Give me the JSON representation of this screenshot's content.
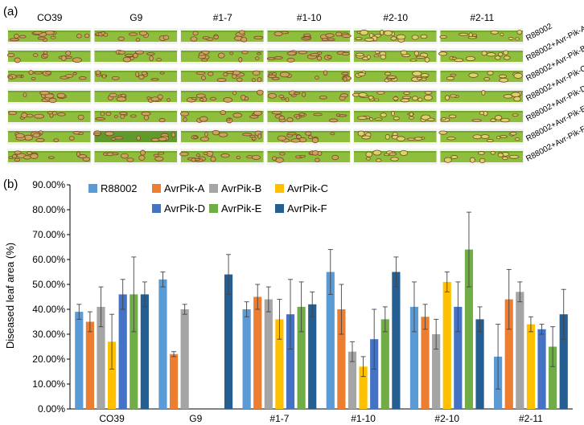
{
  "panel_a": {
    "label": "(a)",
    "columns": [
      "CO39",
      "G9",
      "#1-7",
      "#1-10",
      "#2-10",
      "#2-11"
    ],
    "rows": [
      "R88002",
      "R88002+Avr-Pik-A",
      "R88002+Avr-Pik-B",
      "R88002+Avr-Pik-C",
      "R88002+Avr-Pik-D",
      "R88002+Avr-Pik-E",
      "R88002+Avr-Pik-F"
    ],
    "leaf_colors": {
      "healthy": "#8fbe3c",
      "dark_green": "#5f9a2a",
      "lesion_tan": "#c9a45c",
      "lesion_dark": "#7a4a25",
      "yellow": "#d8d46a"
    }
  },
  "chart_data": {
    "type": "bar",
    "panel_label": "(b)",
    "categories": [
      "CO39",
      "G9",
      "#1-7",
      "#1-10",
      "#2-10",
      "#2-11"
    ],
    "ylabel": "Diseased leaf area (%)",
    "xlabel": "",
    "ylim": [
      0,
      90
    ],
    "yticks": [
      "0.00%",
      "10.00%",
      "20.00%",
      "30.00%",
      "40.00%",
      "50.00%",
      "60.00%",
      "70.00%",
      "80.00%",
      "90.00%"
    ],
    "grid": false,
    "legend_position": "top-left",
    "series": [
      {
        "name": "R88002",
        "color": "#5b9bd5",
        "values": [
          39,
          52,
          40,
          55,
          41,
          21
        ],
        "errors": [
          3,
          3,
          3,
          9,
          10,
          13
        ]
      },
      {
        "name": "AvrPik-A",
        "color": "#ed7d31",
        "values": [
          35,
          22,
          45,
          40,
          37,
          44
        ],
        "errors": [
          4,
          1,
          5,
          10,
          5,
          12
        ]
      },
      {
        "name": "AvrPik-B",
        "color": "#a5a5a5",
        "values": [
          41,
          40,
          44,
          23,
          30,
          47
        ],
        "errors": [
          8,
          2,
          5,
          4,
          6,
          4
        ]
      },
      {
        "name": "AvrPik-C",
        "color": "#ffc000",
        "values": [
          27,
          null,
          36,
          17,
          51,
          34
        ],
        "errors": [
          11,
          null,
          8,
          4,
          4,
          3
        ]
      },
      {
        "name": "AvrPik-D",
        "color": "#4472c4",
        "values": [
          46,
          null,
          38,
          28,
          41,
          32
        ],
        "errors": [
          6,
          null,
          14,
          12,
          10,
          2
        ]
      },
      {
        "name": "AvrPik-E",
        "color": "#70ad47",
        "values": [
          46,
          null,
          41,
          36,
          64,
          25
        ],
        "errors": [
          15,
          null,
          10,
          5,
          15,
          8
        ]
      },
      {
        "name": "AvrPik-F",
        "color": "#255e91",
        "values": [
          46,
          54,
          42,
          55,
          36,
          38
        ],
        "errors": [
          5,
          8,
          5,
          6,
          5,
          10
        ]
      }
    ]
  }
}
